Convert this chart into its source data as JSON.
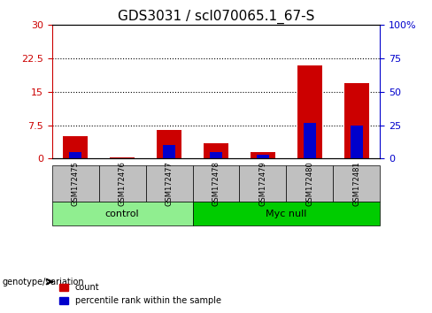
{
  "title": "GDS3031 / scl070065.1_67-S",
  "samples": [
    "GSM172475",
    "GSM172476",
    "GSM172477",
    "GSM172478",
    "GSM172479",
    "GSM172480",
    "GSM172481"
  ],
  "count_values": [
    5.0,
    0.2,
    6.5,
    3.5,
    1.5,
    21.0,
    17.0
  ],
  "percentile_values": [
    5.0,
    0.3,
    10.0,
    5.0,
    3.0,
    27.0,
    25.0
  ],
  "left_yticks": [
    0,
    7.5,
    15,
    22.5,
    30
  ],
  "right_yticks": [
    0,
    25,
    50,
    75,
    100
  ],
  "right_ytick_labels": [
    "0",
    "25",
    "50",
    "75",
    "100%"
  ],
  "ylim_left": [
    0,
    30
  ],
  "ylim_right": [
    0,
    100
  ],
  "bar_width": 0.35,
  "count_color": "#CC0000",
  "percentile_color": "#0000CC",
  "control_samples": [
    "GSM172475",
    "GSM172476",
    "GSM172477"
  ],
  "myc_null_samples": [
    "GSM172478",
    "GSM172479",
    "GSM172480",
    "GSM172481"
  ],
  "control_label": "control",
  "myc_null_label": "Myc null",
  "genotype_label": "genotype/variation",
  "control_color": "#90EE90",
  "myc_null_color": "#00CC00",
  "annotation_box_color": "#C0C0C0",
  "legend_count_label": "count",
  "legend_percentile_label": "percentile rank within the sample",
  "title_fontsize": 11,
  "tick_label_fontsize": 8,
  "axis_label_fontsize": 8,
  "dotted_line_color": "black"
}
